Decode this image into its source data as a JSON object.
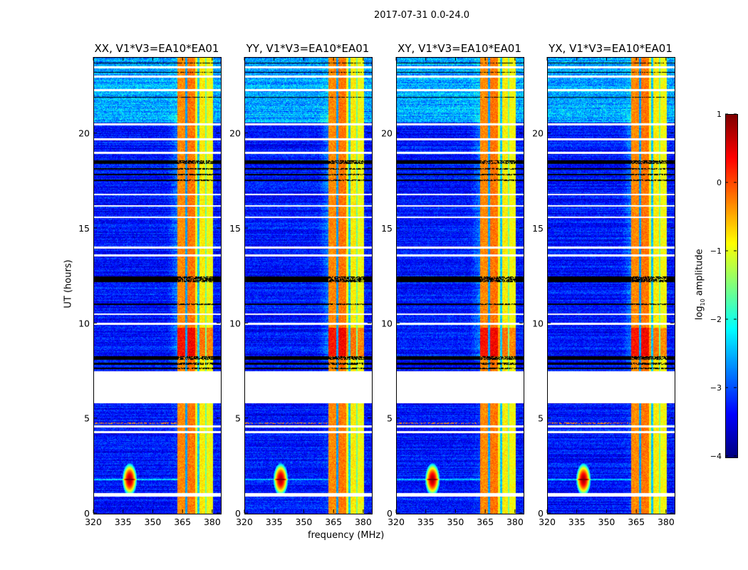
{
  "figure": {
    "suptitle": "2017-07-31 0.0-24.0"
  },
  "chart_data": {
    "type": "heatmap",
    "xlabel": "frequency (MHz)",
    "ylabel": "UT (hours)",
    "xlim": [
      320,
      384
    ],
    "ylim": [
      0,
      24
    ],
    "xticks": [
      "320",
      "335",
      "350",
      "365",
      "380"
    ],
    "xtick_values": [
      320,
      335,
      350,
      365,
      380
    ],
    "yticks": [
      "0",
      "5",
      "10",
      "15",
      "20"
    ],
    "ytick_values": [
      0,
      5,
      10,
      15,
      20
    ],
    "panels": [
      {
        "title": "XX, V1*V3=EA10*EA01"
      },
      {
        "title": "YY, V1*V3=EA10*EA01"
      },
      {
        "title": "XY, V1*V3=EA10*EA01"
      },
      {
        "title": "YX, V1*V3=EA10*EA01"
      }
    ],
    "colorbar": {
      "label": "log10 amplitude",
      "label_main": "log",
      "label_sub": "10",
      "label_rest": " amplitude",
      "colormap": "jet",
      "range": [
        -4,
        1
      ],
      "ticks": [
        "1",
        "0",
        "−1",
        "−2",
        "−3",
        "−4"
      ],
      "tick_values": [
        1,
        0,
        -1,
        -2,
        -3,
        -4
      ]
    },
    "no_data_interval_hours": [
      5.8,
      7.5
    ],
    "background_log_amplitude": -3.3,
    "high_band_mhz": [
      362,
      380
    ],
    "band_columns": [
      {
        "from": 362,
        "to": 366,
        "value": -0.3
      },
      {
        "from": 366,
        "to": 367,
        "value": -2.6
      },
      {
        "from": 367,
        "to": 371,
        "value": -0.2
      },
      {
        "from": 371,
        "to": 372.3,
        "value": -0.9
      },
      {
        "from": 372.3,
        "to": 373.2,
        "value": -2.4
      },
      {
        "from": 373.2,
        "to": 376,
        "value": -0.8
      },
      {
        "from": 376,
        "to": 376.8,
        "value": -1.6
      },
      {
        "from": 376.8,
        "to": 380,
        "value": -0.9
      }
    ],
    "rfi_spot": {
      "freq_mhz": 338,
      "time_h": 1.8
    },
    "flagged_white_rows_h": [
      0.95,
      1.05,
      4.3,
      4.6,
      10.0,
      10.5,
      13.6,
      14.0,
      15.6,
      16.2,
      16.8,
      19.0,
      19.7,
      20.5,
      22.3,
      23.0,
      23.5
    ],
    "flagged_black_ranges_h": [
      [
        7.6,
        7.7
      ],
      [
        7.85,
        7.95
      ],
      [
        8.1,
        8.3
      ],
      [
        11.0,
        11.05
      ],
      [
        12.2,
        12.5
      ],
      [
        17.5,
        17.6
      ],
      [
        17.8,
        17.9
      ],
      [
        18.1,
        18.2
      ],
      [
        18.4,
        18.6
      ],
      [
        21.9,
        21.95
      ],
      [
        23.2,
        23.25
      ],
      [
        23.7,
        23.75
      ]
    ]
  }
}
